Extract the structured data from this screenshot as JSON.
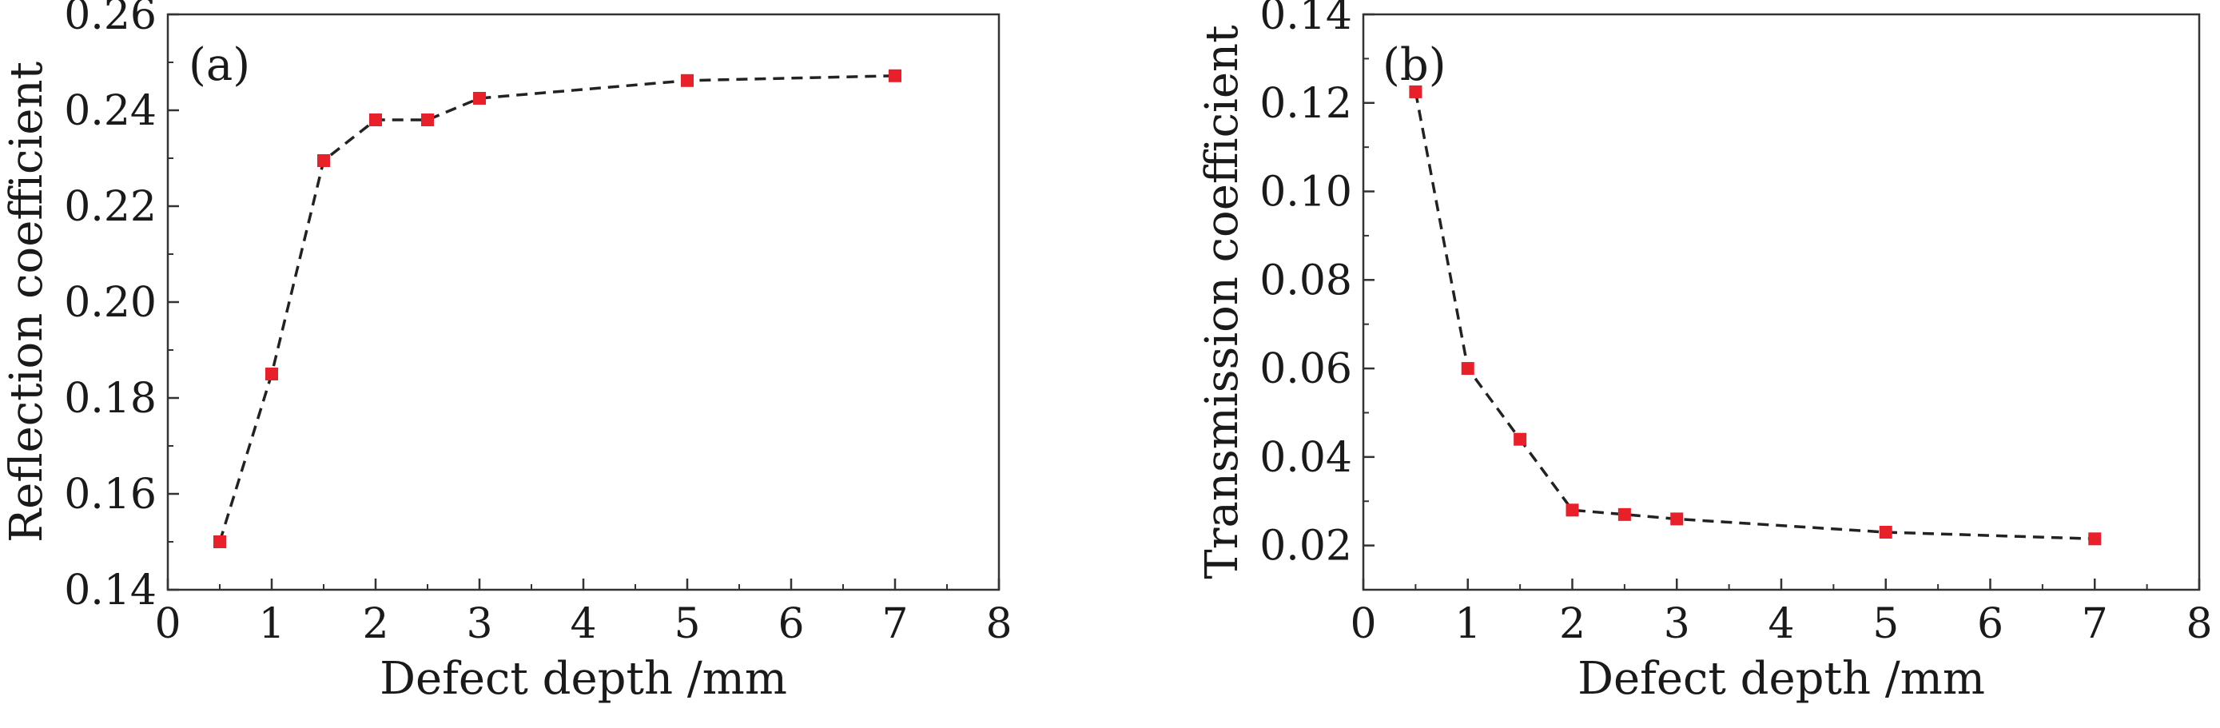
{
  "chart_data": [
    {
      "type": "scatter",
      "panel_label": "(a)",
      "xlabel": "Defect depth /mm",
      "ylabel": "Reflection coefficient",
      "xlim": [
        0,
        8
      ],
      "ylim": [
        0.14,
        0.26
      ],
      "xticks": [
        0,
        1,
        2,
        3,
        4,
        5,
        6,
        7,
        8
      ],
      "yticks": [
        0.14,
        0.16,
        0.18,
        0.2,
        0.22,
        0.24,
        0.26
      ],
      "xtick_labels": [
        "0",
        "1",
        "2",
        "3",
        "4",
        "5",
        "6",
        "7",
        "8"
      ],
      "ytick_labels": [
        "0.14",
        "0.16",
        "0.18",
        "0.20",
        "0.22",
        "0.24",
        "0.26"
      ],
      "grid": false,
      "series": [
        {
          "x": [
            0.5,
            1,
            1.5,
            2,
            2.5,
            3,
            5,
            7
          ],
          "y": [
            0.15,
            0.185,
            0.2295,
            0.238,
            0.238,
            0.2425,
            0.2462,
            0.2472
          ],
          "marker": "square",
          "marker_color": "#e8202a",
          "line_style": "dashed",
          "line_color": "#222222"
        }
      ]
    },
    {
      "type": "scatter",
      "panel_label": "(b)",
      "xlabel": "Defect depth /mm",
      "ylabel": "Transmission coefficient",
      "xlim": [
        0,
        8
      ],
      "ylim": [
        0.01,
        0.14
      ],
      "xticks": [
        0,
        1,
        2,
        3,
        4,
        5,
        6,
        7,
        8
      ],
      "yticks": [
        0.02,
        0.04,
        0.06,
        0.08,
        0.1,
        0.12,
        0.14
      ],
      "xtick_labels": [
        "0",
        "1",
        "2",
        "3",
        "4",
        "5",
        "6",
        "7",
        "8"
      ],
      "ytick_labels": [
        "0.02",
        "0.04",
        "0.06",
        "0.08",
        "0.10",
        "0.12",
        "0.14"
      ],
      "grid": false,
      "series": [
        {
          "x": [
            0.5,
            1,
            1.5,
            2,
            2.5,
            3,
            5,
            7
          ],
          "y": [
            0.1225,
            0.06,
            0.044,
            0.028,
            0.027,
            0.026,
            0.023,
            0.0215
          ],
          "marker": "square",
          "marker_color": "#e8202a",
          "line_style": "dashed",
          "line_color": "#222222"
        }
      ]
    }
  ]
}
